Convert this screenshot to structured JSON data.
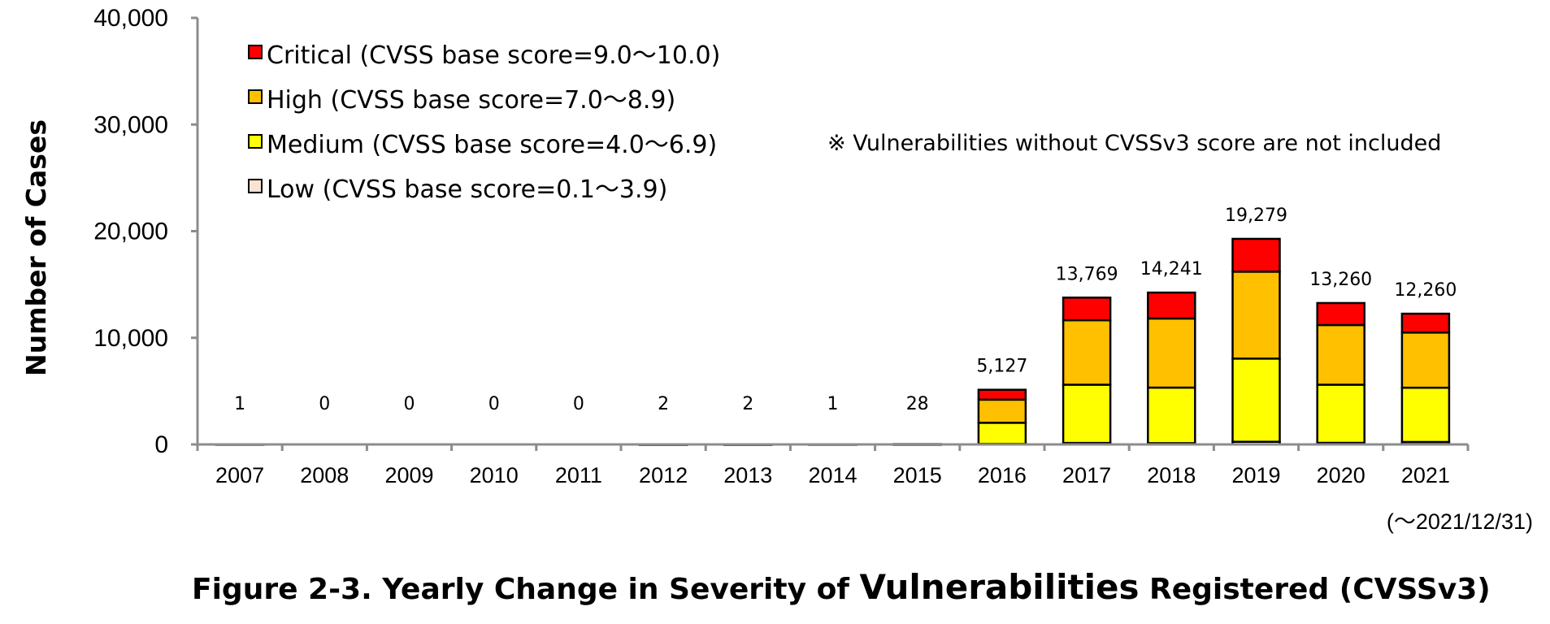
{
  "chart_data": {
    "type": "bar",
    "stacked": true,
    "title": "Figure 2-3. Yearly Change in Severity of Vulnerabilities Registered (CVSSv3)",
    "title_parts": [
      "Figure 2-3. Yearly Change in Severity of ",
      "Vulnerabilities",
      " Registered (CVSSv3)"
    ],
    "ylabel": "Number of Cases",
    "xlabel": "",
    "ylim": [
      0,
      40000
    ],
    "yticks": [
      0,
      10000,
      20000,
      30000,
      40000
    ],
    "ytick_labels": [
      "0",
      "10,000",
      "20,000",
      "30,000",
      "40,000"
    ],
    "categories": [
      "2007",
      "2008",
      "2009",
      "2010",
      "2011",
      "2012",
      "2013",
      "2014",
      "2015",
      "2016",
      "2017",
      "2018",
      "2019",
      "2020",
      "2021"
    ],
    "x_note": "(～2021/12/31)",
    "totals": [
      1,
      0,
      0,
      0,
      0,
      2,
      2,
      1,
      28,
      5127,
      13769,
      14241,
      19279,
      13260,
      12260
    ],
    "total_labels": [
      "1",
      "0",
      "0",
      "0",
      "0",
      "2",
      "2",
      "1",
      "28",
      "5,127",
      "13,769",
      "14,241",
      "19,279",
      "13,260",
      "12,260"
    ],
    "series": [
      {
        "name": "Low (CVSS base score=0.1～3.9)",
        "color": "#f8e4d4",
        "values": [
          0,
          0,
          0,
          0,
          0,
          0,
          0,
          0,
          1,
          50,
          140,
          120,
          250,
          150,
          230
        ]
      },
      {
        "name": "Medium (CVSS base score=4.0～6.9)",
        "color": "#ffff00",
        "values": [
          1,
          0,
          0,
          0,
          0,
          1,
          1,
          0,
          15,
          1980,
          5460,
          5210,
          7800,
          5450,
          5090
        ]
      },
      {
        "name": "High (CVSS base score=7.0～8.9)",
        "color": "#ffc000",
        "values": [
          0,
          0,
          0,
          0,
          0,
          1,
          1,
          1,
          10,
          2170,
          6050,
          6480,
          8150,
          5600,
          5170
        ]
      },
      {
        "name": "Critical (CVSS base score=9.0～10.0)",
        "color": "#ff0000",
        "values": [
          0,
          0,
          0,
          0,
          0,
          0,
          0,
          0,
          2,
          927,
          2119,
          2431,
          3079,
          2060,
          1770
        ]
      }
    ],
    "legend_order": [
      "Critical (CVSS base score=9.0～10.0)",
      "High (CVSS base score=7.0～8.9)",
      "Medium (CVSS base score=4.0～6.9)",
      "Low (CVSS base score=0.1～3.9)"
    ],
    "legend_placement": "top-left",
    "annotation": "※ Vulnerabilities without CVSSv3 score are not included",
    "grid": false
  }
}
